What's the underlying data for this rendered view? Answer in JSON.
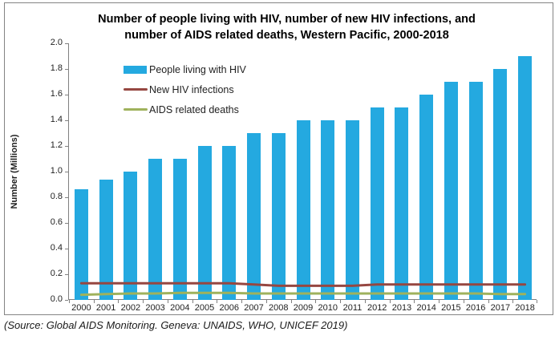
{
  "title": {
    "line1": "Number of people living with HIV, number of new HIV infections, and",
    "line2": "number of AIDS related deaths, Western Pacific, 2000-2018"
  },
  "source_note": "(Source: Global AIDS Monitoring. Geneva: UNAIDS, WHO, UNICEF 2019)",
  "colors": {
    "bar_blue": "#24A9E0",
    "line_dark_red": "#964741",
    "line_olive": "#9FB25C",
    "axis_gray": "#808080",
    "border_gray": "#848484"
  },
  "chart_data": {
    "type": "bar",
    "title": "Number of people living with HIV, number of new HIV infections, and number of AIDS related deaths, Western Pacific, 2000-2018",
    "xlabel": "",
    "ylabel": "Number (Millions)",
    "ylim": [
      0,
      2.0
    ],
    "ytick_step": 0.2,
    "grid": false,
    "legend_position": "top-left-inside",
    "categories": [
      "2000",
      "2001",
      "2002",
      "2003",
      "2004",
      "2005",
      "2006",
      "2007",
      "2008",
      "2009",
      "2010",
      "2011",
      "2012",
      "2013",
      "2014",
      "2015",
      "2016",
      "2017",
      "2018"
    ],
    "series": [
      {
        "name": "People living with HIV",
        "type": "bar",
        "color": "#24A9E0",
        "values": [
          0.86,
          0.94,
          1.0,
          1.1,
          1.1,
          1.2,
          1.2,
          1.3,
          1.3,
          1.4,
          1.4,
          1.4,
          1.5,
          1.5,
          1.6,
          1.7,
          1.7,
          1.8,
          1.9
        ]
      },
      {
        "name": "New HIV infections",
        "type": "line",
        "color": "#964741",
        "values": [
          0.13,
          0.13,
          0.13,
          0.13,
          0.13,
          0.13,
          0.13,
          0.12,
          0.11,
          0.11,
          0.11,
          0.11,
          0.12,
          0.12,
          0.12,
          0.12,
          0.12,
          0.12,
          0.12
        ]
      },
      {
        "name": "AIDS related deaths",
        "type": "line",
        "color": "#9FB25C",
        "values": [
          0.04,
          0.045,
          0.05,
          0.05,
          0.055,
          0.055,
          0.055,
          0.05,
          0.05,
          0.05,
          0.05,
          0.05,
          0.05,
          0.05,
          0.05,
          0.05,
          0.05,
          0.045,
          0.045
        ]
      }
    ]
  }
}
